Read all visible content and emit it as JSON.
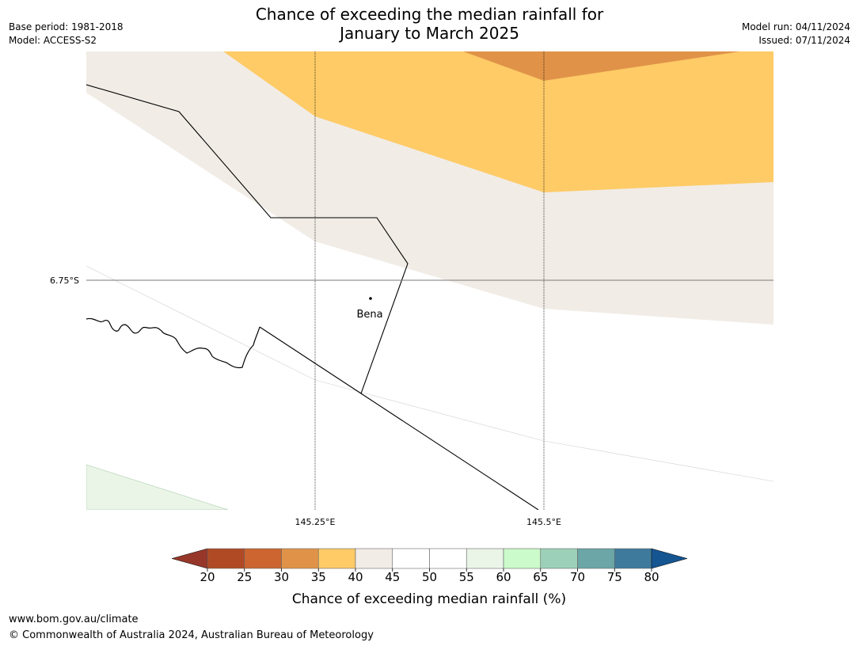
{
  "title": {
    "line1": "Chance of exceeding the median rainfall for",
    "line2": "January to March 2025"
  },
  "meta": {
    "base_period": "Base period: 1981-2018",
    "model": "Model: ACCESS-S2",
    "model_run": "Model run: 04/11/2024",
    "issued": "Issued: 07/11/2024"
  },
  "map": {
    "lat_label": "6.75°S",
    "lon_labels": [
      "145.25°E",
      "145.5°E"
    ],
    "place_label": "Bena"
  },
  "colorbar": {
    "ticks": [
      "20",
      "25",
      "30",
      "35",
      "40",
      "45",
      "50",
      "55",
      "60",
      "65",
      "70",
      "75",
      "80"
    ],
    "colors": [
      "#b04a25",
      "#cc6530",
      "#e09348",
      "#fecb67",
      "#f1ece6",
      "#ffffff",
      "#ffffff",
      "#eaf5e8",
      "#cbfacb",
      "#9dd0b8",
      "#6ca6a6",
      "#3e7a9c"
    ],
    "low_extend_color": "#97372a",
    "high_extend_color": "#155591",
    "label": "Chance of exceeding median rainfall (%)"
  },
  "footer": {
    "url": "www.bom.gov.au/climate",
    "copyright": "© Commonwealth of Australia 2024, Australian Bureau of Meteorology"
  }
}
